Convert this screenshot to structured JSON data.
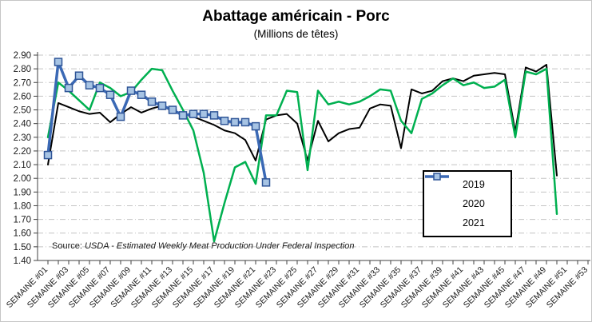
{
  "chart_data": {
    "type": "line",
    "title": "Abattage américain - Porc",
    "subtitle": "(Millions de têtes)",
    "source_prefix": "Source: ",
    "source_text": "USDA - Estimated Weekly Meat Production Under Federal Inspection",
    "ylim": [
      1.4,
      2.9
    ],
    "y_step": 0.1,
    "grid": "horizontal-dashed",
    "legend_position": "inside-right",
    "y_ticks": [
      "2.90",
      "2.80",
      "2.70",
      "2.60",
      "2.50",
      "2.40",
      "2.30",
      "2.20",
      "2.10",
      "2.00",
      "1.90",
      "1.80",
      "1.70",
      "1.60",
      "1.50",
      "1.40"
    ],
    "x_labels": [
      "SEMAINE #01",
      "SEMAINE #03",
      "SEMAINE #05",
      "SEMAINE #07",
      "SEMAINE #09",
      "SEMAINE #11",
      "SEMAINE #13",
      "SEMAINE #15",
      "SEMAINE #17",
      "SEMAINE #19",
      "SEMAINE #21",
      "SEMAINE #23",
      "SEMAINE #25",
      "SEMAINE #27",
      "SEMAINE #29",
      "SEMAINE #31",
      "SEMAINE #33",
      "SEMAINE #35",
      "SEMAINE #37",
      "SEMAINE #39",
      "SEMAINE #41",
      "SEMAINE #43",
      "SEMAINE #45",
      "SEMAINE #47",
      "SEMAINE #49",
      "SEMAINE #51",
      "SEMAINE #53"
    ],
    "n_categories": 53,
    "series": [
      {
        "name": "2019",
        "color": "#000000",
        "width": 2,
        "marker": false,
        "start_week": 1,
        "values": [
          2.1,
          2.55,
          2.52,
          2.49,
          2.47,
          2.48,
          2.41,
          2.47,
          2.52,
          2.48,
          2.51,
          2.53,
          2.49,
          2.47,
          2.45,
          2.42,
          2.39,
          2.35,
          2.33,
          2.28,
          2.13,
          2.43,
          2.46,
          2.47,
          2.4,
          2.13,
          2.42,
          2.27,
          2.33,
          2.36,
          2.37,
          2.51,
          2.54,
          2.53,
          2.22,
          2.65,
          2.62,
          2.64,
          2.71,
          2.73,
          2.71,
          2.75,
          2.76,
          2.77,
          2.76,
          2.34,
          2.81,
          2.78,
          2.83,
          2.02
        ]
      },
      {
        "name": "2020",
        "color": "#00B050",
        "width": 2.5,
        "marker": false,
        "start_week": 1,
        "values": [
          2.3,
          2.7,
          2.64,
          2.57,
          2.5,
          2.7,
          2.66,
          2.6,
          2.63,
          2.72,
          2.8,
          2.79,
          2.64,
          2.5,
          2.35,
          2.04,
          1.54,
          1.82,
          2.08,
          2.12,
          1.96,
          2.46,
          2.46,
          2.64,
          2.63,
          2.06,
          2.64,
          2.54,
          2.56,
          2.54,
          2.56,
          2.6,
          2.65,
          2.64,
          2.42,
          2.33,
          2.58,
          2.62,
          2.68,
          2.73,
          2.68,
          2.7,
          2.66,
          2.67,
          2.72,
          2.3,
          2.78,
          2.76,
          2.8,
          1.74
        ]
      },
      {
        "name": "2021",
        "color": "#3B69B5",
        "width": 3.5,
        "marker": true,
        "marker_fill": "#A7C4E4",
        "marker_stroke": "#2F5597",
        "start_week": 1,
        "values": [
          2.17,
          2.85,
          2.66,
          2.75,
          2.68,
          2.66,
          2.61,
          2.45,
          2.64,
          2.61,
          2.56,
          2.53,
          2.5,
          2.46,
          2.47,
          2.47,
          2.46,
          2.42,
          2.41,
          2.41,
          2.38,
          1.97
        ]
      }
    ],
    "colors": {
      "gridline": "#c4c4c4",
      "axis": "#404040",
      "tick_label": "#1a1a1a"
    }
  }
}
